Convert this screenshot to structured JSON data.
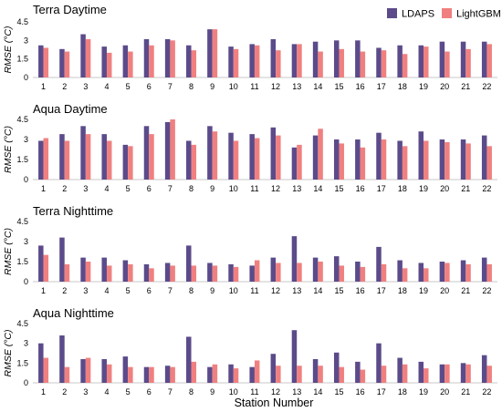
{
  "figure": {
    "xlabel": "Station Number",
    "legend": {
      "placement": "top-right",
      "items": [
        {
          "label": "LDAPS",
          "color": "#5b4b8a"
        },
        {
          "label": "LightGBM",
          "color": "#f08080"
        }
      ]
    }
  },
  "chart_data": [
    {
      "type": "bar",
      "title": "Terra Daytime",
      "ylabel": "RMSE (°C)",
      "ylim": [
        0,
        4.5
      ],
      "yticks": [
        "0",
        "1.5",
        "3",
        "4.5"
      ],
      "grid": false,
      "categories": [
        "1",
        "2",
        "3",
        "4",
        "5",
        "6",
        "7",
        "8",
        "9",
        "10",
        "11",
        "12",
        "13",
        "14",
        "15",
        "16",
        "17",
        "18",
        "19",
        "20",
        "21",
        "22"
      ],
      "series": [
        {
          "name": "LDAPS",
          "color": "#5b4b8a",
          "values": [
            2.6,
            2.3,
            3.5,
            2.5,
            2.6,
            3.1,
            3.1,
            2.6,
            3.9,
            2.5,
            2.7,
            3.1,
            2.7,
            2.9,
            3.0,
            3.0,
            2.4,
            2.6,
            2.6,
            2.9,
            2.9,
            2.9
          ]
        },
        {
          "name": "LightGBM",
          "color": "#f08080",
          "values": [
            2.4,
            2.1,
            3.1,
            2.0,
            2.1,
            2.6,
            3.0,
            2.2,
            3.9,
            2.3,
            2.6,
            2.2,
            2.7,
            2.1,
            2.3,
            2.1,
            2.2,
            1.9,
            2.5,
            2.1,
            2.3,
            2.7
          ]
        }
      ]
    },
    {
      "type": "bar",
      "title": "Aqua Daytime",
      "ylabel": "RMSE (°C)",
      "ylim": [
        0,
        4.5
      ],
      "yticks": [
        "0",
        "1.5",
        "3",
        "4.5"
      ],
      "grid": false,
      "categories": [
        "1",
        "2",
        "3",
        "4",
        "5",
        "6",
        "7",
        "8",
        "9",
        "10",
        "11",
        "12",
        "13",
        "14",
        "15",
        "16",
        "17",
        "18",
        "19",
        "20",
        "21",
        "22"
      ],
      "series": [
        {
          "name": "LDAPS",
          "color": "#5b4b8a",
          "values": [
            2.9,
            3.4,
            4.0,
            3.4,
            2.6,
            4.0,
            4.3,
            2.9,
            4.0,
            3.5,
            3.4,
            3.9,
            2.4,
            3.3,
            3.0,
            3.0,
            3.5,
            2.9,
            3.6,
            3.0,
            3.0,
            3.3
          ]
        },
        {
          "name": "LightGBM",
          "color": "#f08080",
          "values": [
            3.1,
            2.9,
            3.4,
            2.9,
            2.5,
            3.4,
            4.5,
            2.6,
            3.6,
            2.9,
            3.1,
            3.3,
            2.6,
            3.8,
            2.7,
            2.4,
            3.0,
            2.5,
            2.9,
            2.8,
            2.7,
            2.5
          ]
        }
      ]
    },
    {
      "type": "bar",
      "title": "Terra Nighttime",
      "ylabel": "RMSE (°C)",
      "ylim": [
        0,
        4.5
      ],
      "yticks": [
        "0",
        "1.5",
        "3",
        "4.5"
      ],
      "grid": false,
      "categories": [
        "1",
        "2",
        "3",
        "4",
        "5",
        "6",
        "7",
        "8",
        "9",
        "10",
        "11",
        "12",
        "13",
        "14",
        "15",
        "16",
        "17",
        "18",
        "19",
        "20",
        "21",
        "22"
      ],
      "series": [
        {
          "name": "LDAPS",
          "color": "#5b4b8a",
          "values": [
            2.7,
            3.3,
            1.8,
            1.8,
            1.6,
            1.3,
            1.4,
            2.7,
            1.4,
            1.3,
            1.2,
            1.8,
            3.4,
            1.8,
            1.9,
            1.5,
            2.6,
            1.6,
            1.4,
            1.5,
            1.6,
            1.8
          ]
        },
        {
          "name": "LightGBM",
          "color": "#f08080",
          "values": [
            2.0,
            1.3,
            1.5,
            1.2,
            1.3,
            1.0,
            1.2,
            1.2,
            1.2,
            1.1,
            1.6,
            1.4,
            1.4,
            1.5,
            1.2,
            1.1,
            1.3,
            1.0,
            1.0,
            1.4,
            1.3,
            1.3
          ]
        }
      ]
    },
    {
      "type": "bar",
      "title": "Aqua Nighttime",
      "ylabel": "RMSE (°C)",
      "ylim": [
        0,
        4.5
      ],
      "yticks": [
        "0",
        "1.5",
        "3",
        "4.5"
      ],
      "grid": false,
      "categories": [
        "1",
        "2",
        "3",
        "4",
        "5",
        "6",
        "7",
        "8",
        "9",
        "10",
        "11",
        "12",
        "13",
        "14",
        "15",
        "16",
        "17",
        "18",
        "19",
        "20",
        "21",
        "22"
      ],
      "series": [
        {
          "name": "LDAPS",
          "color": "#5b4b8a",
          "values": [
            3.0,
            3.6,
            1.8,
            1.8,
            2.0,
            1.2,
            1.3,
            3.5,
            1.2,
            1.4,
            1.2,
            2.2,
            4.0,
            1.8,
            2.3,
            1.6,
            3.0,
            1.9,
            1.6,
            1.4,
            1.5,
            2.1
          ]
        },
        {
          "name": "LightGBM",
          "color": "#f08080",
          "values": [
            1.9,
            1.2,
            1.9,
            1.4,
            1.2,
            1.2,
            1.2,
            1.6,
            1.4,
            1.1,
            1.7,
            1.3,
            1.3,
            1.3,
            1.2,
            1.0,
            1.3,
            1.4,
            1.1,
            1.4,
            1.4,
            1.3
          ]
        }
      ]
    }
  ]
}
